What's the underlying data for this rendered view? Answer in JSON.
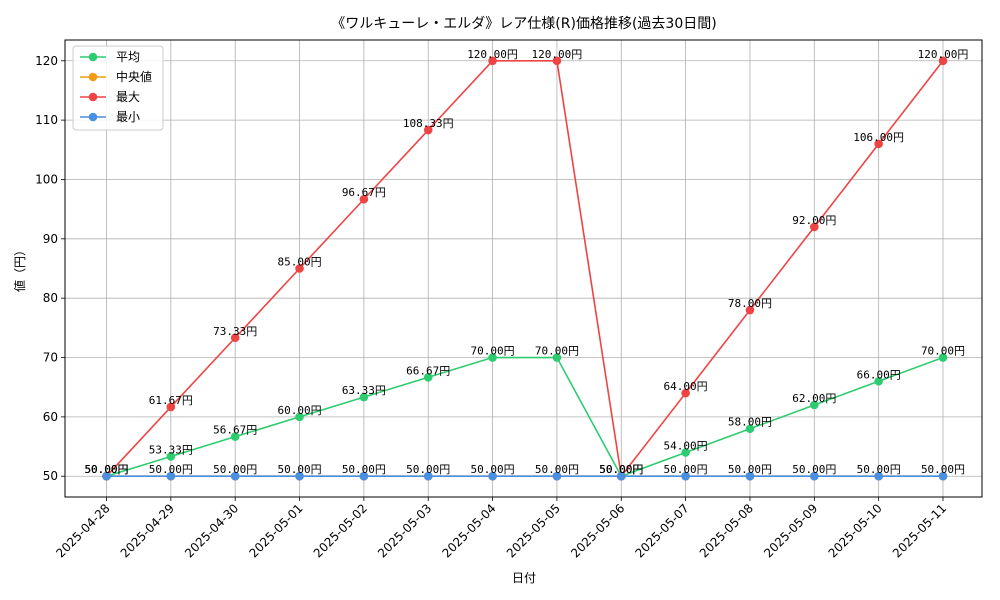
{
  "chart_data": {
    "type": "line",
    "title": "《ワルキューレ・エルダ》レア仕様(R)価格推移(過去30日間)",
    "xlabel": "日付",
    "ylabel": "値（円）",
    "ylim": [
      46.5,
      123.5
    ],
    "yticks": [
      50,
      60,
      70,
      80,
      90,
      100,
      110,
      120
    ],
    "grid": true,
    "legend_position": "top-left",
    "label_suffix": "円",
    "categories": [
      "2025-04-28",
      "2025-04-29",
      "2025-04-30",
      "2025-05-01",
      "2025-05-02",
      "2025-05-03",
      "2025-05-04",
      "2025-05-05",
      "2025-05-06",
      "2025-05-07",
      "2025-05-08",
      "2025-05-09",
      "2025-05-10",
      "2025-05-11"
    ],
    "series": [
      {
        "key": "average",
        "name": "平均",
        "color": "#2ecc71",
        "labels": true,
        "values": [
          50.0,
          53.33,
          56.67,
          60.0,
          63.33,
          66.67,
          70.0,
          70.0,
          50.0,
          54.0,
          58.0,
          62.0,
          66.0,
          70.0
        ]
      },
      {
        "key": "median",
        "name": "中央値",
        "color": "#f39c12",
        "labels": false,
        "values": [
          50.0,
          50.0,
          50.0,
          50.0,
          50.0,
          50.0,
          50.0,
          50.0,
          50.0,
          50.0,
          50.0,
          50.0,
          50.0,
          50.0
        ]
      },
      {
        "key": "max",
        "name": "最大",
        "color": "#ef4444",
        "labels": true,
        "values": [
          50.0,
          61.67,
          73.33,
          85.0,
          96.67,
          108.33,
          120.0,
          120.0,
          50.0,
          64.0,
          78.0,
          92.0,
          106.0,
          120.0
        ]
      },
      {
        "key": "min",
        "name": "最小",
        "color": "#4a90e2",
        "labels": true,
        "values": [
          50.0,
          50.0,
          50.0,
          50.0,
          50.0,
          50.0,
          50.0,
          50.0,
          50.0,
          50.0,
          50.0,
          50.0,
          50.0,
          50.0
        ]
      }
    ]
  }
}
